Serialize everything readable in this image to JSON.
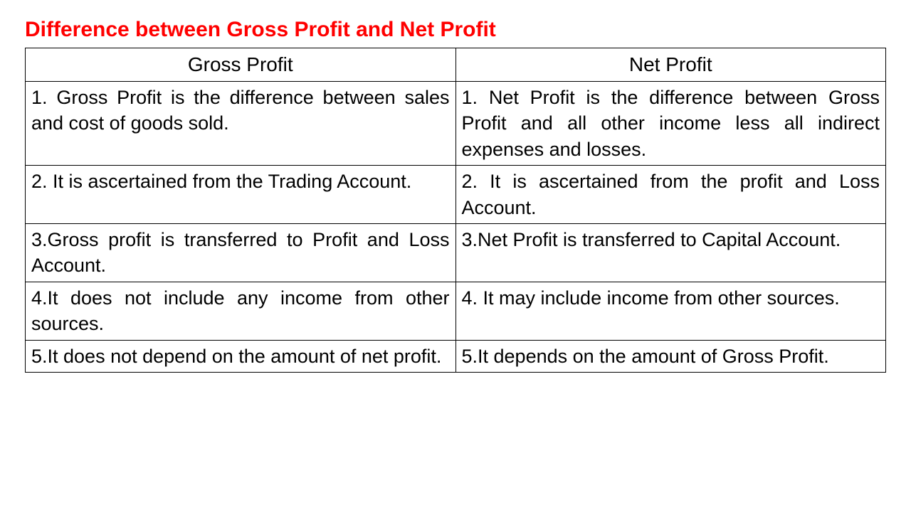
{
  "title": "Difference between Gross Profit and Net Profit",
  "title_color": "#ff0000",
  "title_fontsize": 30,
  "title_fontweight": "bold",
  "background_color": "#ffffff",
  "border_color": "#000000",
  "cell_fontsize": 27,
  "header_fontsize": 28,
  "text_color": "#000000",
  "table": {
    "columns": [
      "Gross Profit",
      "Net Profit"
    ],
    "rows": [
      [
        "1. Gross Profit is the difference between sales and cost of goods sold.",
        "1. Net Profit is the difference between Gross Profit and all other income less all indirect expenses and losses."
      ],
      [
        "2. It is ascertained from the Trading Account.",
        "2. It is ascertained from the profit and Loss Account."
      ],
      [
        "3.Gross profit is transferred to Profit and Loss Account.",
        "3.Net Profit is transferred to Capital Account."
      ],
      [
        "4.It does not include any income from other sources.",
        "4. It may include income from other sources."
      ],
      [
        "5.It does not depend on the amount of net profit.",
        "5.It depends on the amount of Gross Profit."
      ]
    ]
  }
}
